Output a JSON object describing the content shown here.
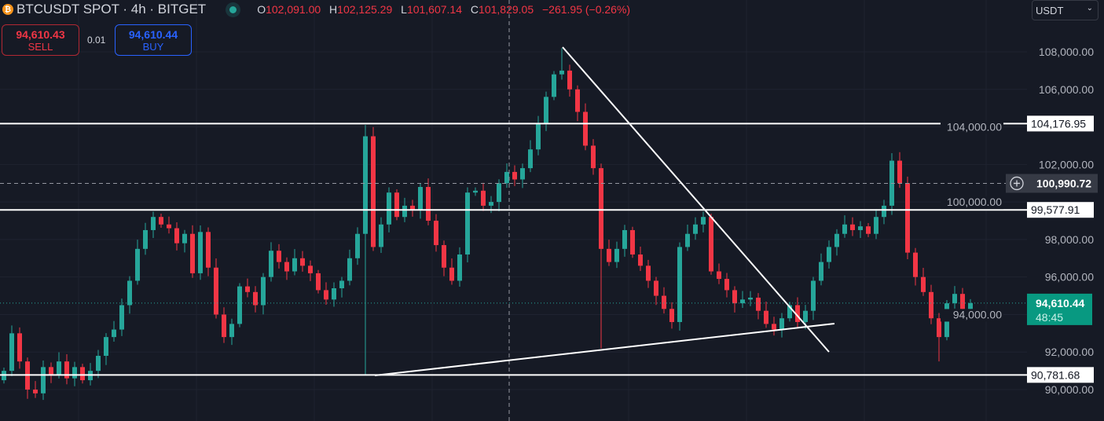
{
  "header": {
    "symbol_title": "BTCUSDT SPOT · 4h · BITGET",
    "coin_icon": "bitcoin-icon",
    "ohlc": {
      "o_label": "O",
      "o": "102,091.00",
      "h_label": "H",
      "h": "102,125.29",
      "l_label": "L",
      "l": "101,607.14",
      "c_label": "C",
      "c": "101,829.05",
      "change": "−261.95 (−0.26%)"
    }
  },
  "trade": {
    "sell_price": "94,610.43",
    "sell_label": "SELL",
    "quantity": "0.01",
    "buy_price": "94,610.44",
    "buy_label": "BUY"
  },
  "currency_select": {
    "value": "USDT"
  },
  "colors": {
    "up": "#26a69a",
    "down": "#f23645",
    "bg": "#161a25",
    "grid": "#1f2330"
  },
  "chart_data": {
    "type": "candlestick",
    "title": "BTCUSDT SPOT · 4h · BITGET",
    "ylim": [
      88800,
      110600
    ],
    "y_ticks": [
      90000,
      92000,
      94000,
      96000,
      98000,
      100000,
      102000,
      104000,
      106000,
      108000
    ],
    "y_tick_labels": [
      "90,000.00",
      "92,000.00",
      "94,000.00",
      "96,000.00",
      "98,000.00",
      "100,000.00",
      "102,000.00",
      "104,000.00",
      "106,000.00",
      "108,000.00"
    ],
    "first_open": 90500,
    "wick": 350,
    "close": [
      91000,
      93000,
      91500,
      90000,
      89800,
      91200,
      90800,
      91500,
      90600,
      91200,
      90500,
      91000,
      91800,
      92800,
      93200,
      94500,
      95800,
      97500,
      98500,
      99200,
      98800,
      98600,
      97800,
      98300,
      96200,
      98400,
      96500,
      94000,
      92800,
      93500,
      95500,
      95200,
      94500,
      96000,
      97400,
      96800,
      96300,
      97000,
      96600,
      96200,
      95300,
      94800,
      95400,
      95800,
      97000,
      98300,
      103500,
      97600,
      98800,
      100500,
      99200,
      99800,
      99600,
      100800,
      99000,
      97700,
      96500,
      95800,
      97200,
      100500,
      100600,
      99800,
      100000,
      101000,
      101600,
      101200,
      101800,
      102800,
      104200,
      105600,
      106800,
      107000,
      106000,
      104800,
      103000,
      101800,
      97500,
      96800,
      97500,
      98500,
      97200,
      96600,
      95800,
      95000,
      94300,
      93600,
      97600,
      98300,
      98800,
      99200,
      96300,
      95900,
      95300,
      94600,
      94800,
      94900,
      94200,
      93500,
      93200,
      93800,
      94500,
      93600,
      94200,
      95800,
      96800,
      97600,
      98300,
      98800,
      98500,
      98700,
      98300,
      99200,
      99800,
      102200,
      101000,
      97300,
      96000,
      95200,
      93800,
      92800,
      94600,
      95100,
      94300,
      94610
    ],
    "low_overrides": {
      "46": 90800,
      "76": 92200,
      "119": 91500
    },
    "high_overrides": {
      "46": 104100,
      "71": 108200,
      "113": 102600
    },
    "horizontal_levels": [
      {
        "price": 104176.95,
        "label": "104,176.95"
      },
      {
        "price": 99577.91,
        "label": "99,577.91"
      },
      {
        "price": 90781.68,
        "label": "90,781.68"
      }
    ],
    "trendlines": [
      {
        "from": [
          71.1,
          108250
        ],
        "to": [
          105,
          92010
        ]
      },
      {
        "from": [
          47.2,
          90754
        ],
        "to": [
          105.7,
          93517
        ]
      }
    ],
    "crosshair": {
      "index": 64.3,
      "price": 100990.72,
      "label": "100,990.72"
    },
    "last_price": {
      "price": 94610.44,
      "label": "94,610.44",
      "countdown": "48:45"
    }
  }
}
